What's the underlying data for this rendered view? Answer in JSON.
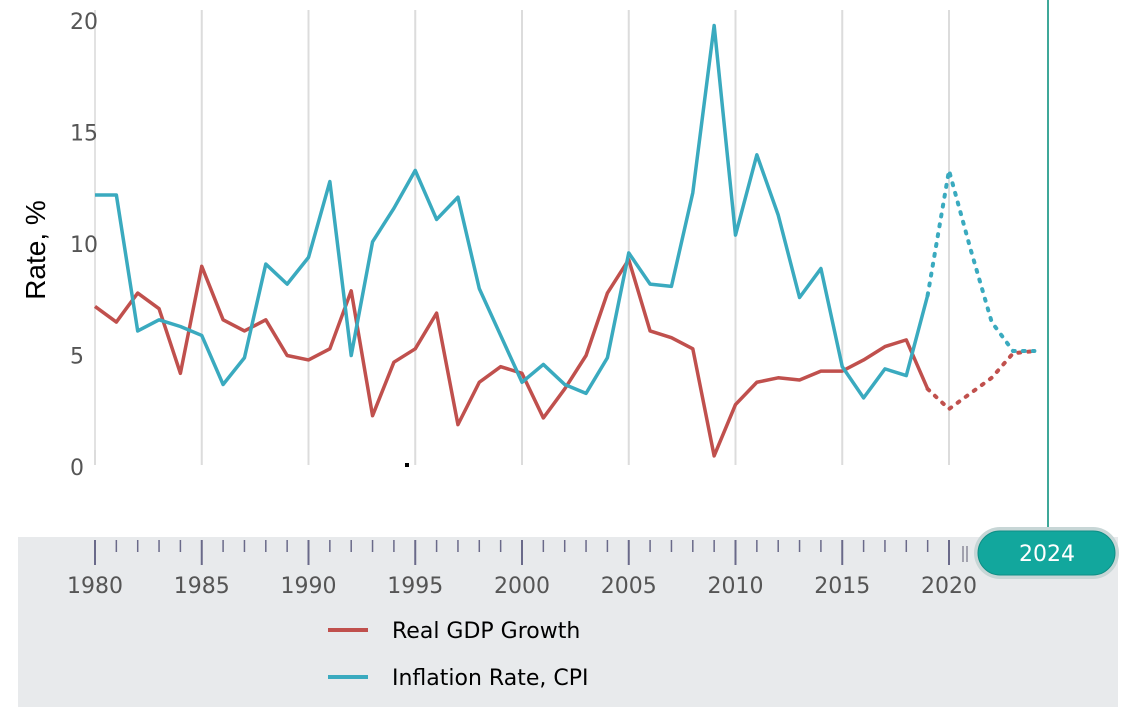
{
  "chart_data": {
    "type": "line",
    "ylabel": "Rate, %",
    "xlabel": "",
    "xlim": [
      1980,
      2024
    ],
    "ylim": [
      0,
      20
    ],
    "x_ticks": [
      "1980",
      "1985",
      "1990",
      "1995",
      "2000",
      "2005",
      "2010",
      "2015",
      "2020"
    ],
    "y_ticks": [
      "0",
      "5",
      "10",
      "15",
      "20"
    ],
    "grid": "vertical",
    "legend_position": "bottom",
    "slider_year": "2024",
    "series": [
      {
        "name": "Real GDP Growth",
        "color": "#c0504d",
        "x": [
          1980,
          1981,
          1982,
          1983,
          1984,
          1985,
          1986,
          1987,
          1988,
          1989,
          1990,
          1991,
          1992,
          1993,
          1994,
          1995,
          1996,
          1997,
          1998,
          1999,
          2000,
          2001,
          2002,
          2003,
          2004,
          2005,
          2006,
          2007,
          2008,
          2009,
          2010,
          2011,
          2012,
          2013,
          2014,
          2015,
          2016,
          2017,
          2018,
          2019
        ],
        "values": [
          7.2,
          6.5,
          7.8,
          7.1,
          4.2,
          9.0,
          6.6,
          6.1,
          6.6,
          5.0,
          4.8,
          5.3,
          7.9,
          2.3,
          4.7,
          5.3,
          6.9,
          1.9,
          3.8,
          4.5,
          4.2,
          2.2,
          3.5,
          5.0,
          7.8,
          9.3,
          6.1,
          5.8,
          5.3,
          0.5,
          2.8,
          3.8,
          4.0,
          3.9,
          4.3,
          4.3,
          4.8,
          5.4,
          5.7,
          3.5
        ],
        "forecast_x": [
          2019,
          2020,
          2021,
          2022,
          2023,
          2024
        ],
        "forecast_values": [
          3.5,
          2.6,
          3.3,
          4.0,
          5.1,
          5.2
        ]
      },
      {
        "name": "Inflation Rate, CPI",
        "color": "#3aaabf",
        "x": [
          1980,
          1981,
          1982,
          1983,
          1984,
          1985,
          1986,
          1987,
          1988,
          1989,
          1990,
          1991,
          1992,
          1993,
          1994,
          1995,
          1996,
          1997,
          1998,
          1999,
          2000,
          2001,
          2002,
          2003,
          2004,
          2005,
          2006,
          2007,
          2008,
          2009,
          2010,
          2011,
          2012,
          2013,
          2014,
          2015,
          2016,
          2017,
          2018,
          2019
        ],
        "values": [
          12.2,
          12.2,
          6.1,
          6.6,
          6.3,
          5.9,
          3.7,
          4.9,
          9.1,
          8.2,
          9.4,
          12.8,
          5.0,
          10.1,
          11.6,
          13.3,
          11.1,
          12.1,
          8.0,
          5.9,
          3.8,
          4.6,
          3.7,
          3.3,
          4.9,
          9.6,
          8.2,
          8.1,
          12.3,
          19.8,
          10.4,
          14.0,
          11.3,
          7.6,
          8.9,
          4.5,
          3.1,
          4.4,
          4.1,
          7.7
        ],
        "forecast_x": [
          2019,
          2020,
          2021,
          2022,
          2023,
          2024
        ],
        "forecast_values": [
          7.7,
          13.3,
          9.8,
          6.5,
          5.2,
          5.2
        ]
      }
    ]
  }
}
